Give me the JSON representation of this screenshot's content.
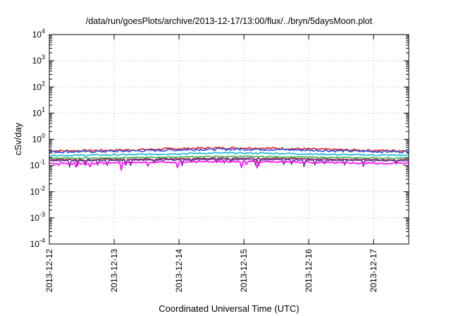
{
  "chart_data": {
    "type": "line",
    "title": "/data/run/goesPlots/archive/2013-12-17/13:00/flux/../bryn/5daysMoon.plot",
    "xlabel": "Coordinated Universal Time (UTC)",
    "ylabel": "cSv/day",
    "x_ticks": [
      "2013-12-12",
      "2013-12-13",
      "2013-12-14",
      "2013-12-15",
      "2013-12-16",
      "2013-12-17"
    ],
    "y_ticks": [
      {
        "base": "10",
        "exp": "4"
      },
      {
        "base": "10",
        "exp": "3"
      },
      {
        "base": "10",
        "exp": "2"
      },
      {
        "base": "10",
        "exp": "1"
      },
      {
        "base": "10",
        "exp": "0"
      },
      {
        "base": "10",
        "exp": "-1"
      },
      {
        "base": "10",
        "exp": "-2"
      },
      {
        "base": "10",
        "exp": "-3"
      },
      {
        "base": "10",
        "exp": "-4"
      }
    ],
    "y_scale": "log",
    "ylim": [
      0.0001,
      10000
    ],
    "xlim": [
      "2013-12-12",
      "2013-12-17 13:00"
    ],
    "grid": true,
    "series": [
      {
        "color": "#e41a1c",
        "base": 0.36,
        "peak": 0.47,
        "jitter": 0.09
      },
      {
        "color": "#2b4fe0",
        "base": 0.33,
        "peak": 0.42,
        "jitter": 0.1
      },
      {
        "color": "#14b8d6",
        "base": 0.24,
        "peak": 0.3,
        "jitter": 0.07
      },
      {
        "color": "#3cb44b",
        "base": 0.19,
        "peak": 0.22,
        "jitter": 0.05
      },
      {
        "color": "#8b2252",
        "base": 0.165,
        "peak": 0.19,
        "jitter": 0.05
      },
      {
        "color": "#6a3d9a",
        "base": 0.15,
        "peak": 0.17,
        "jitter": 0.05
      },
      {
        "color": "#ff00ff",
        "base": 0.12,
        "peak": 0.14,
        "jitter": 0.08
      }
    ]
  }
}
